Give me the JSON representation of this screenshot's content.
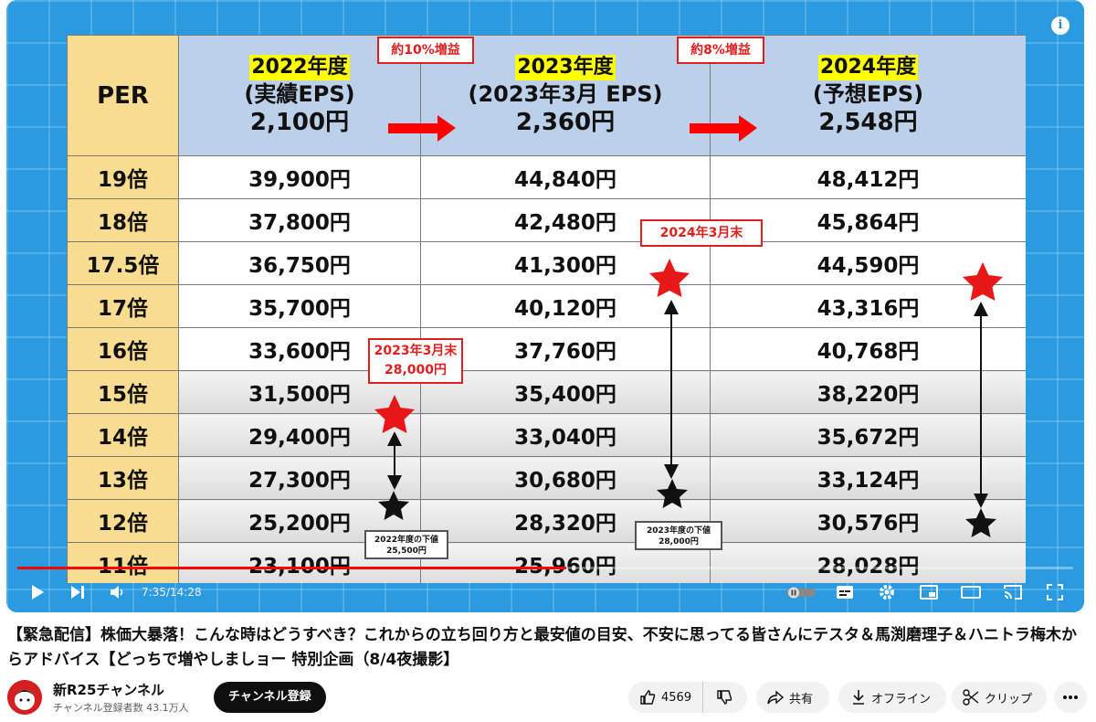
{
  "video": {
    "info_symbol": "i",
    "time_current": "7:35",
    "time_total": "14:28",
    "time_separator": " / ",
    "progress": 0.52,
    "accent": "#ff0000"
  },
  "slide": {
    "header": {
      "per": "PER",
      "col2022": {
        "year": "2022年度",
        "sub": "(実績EPS)",
        "eps": "2,100円"
      },
      "col2023": {
        "year": "2023年度",
        "sub": "(2023年3月 EPS)",
        "eps": "2,360円"
      },
      "col2024": {
        "year": "2024年度",
        "sub": "(予想EPS)",
        "eps": "2,548円"
      }
    },
    "increase_1": "約10%増益",
    "increase_2": "約8%増益",
    "rows": [
      {
        "per": "19倍",
        "v2022": "39,900円",
        "v2023": "44,840円",
        "v2024": "48,412円"
      },
      {
        "per": "18倍",
        "v2022": "37,800円",
        "v2023": "42,480円",
        "v2024": "45,864円"
      },
      {
        "per": "17.5倍",
        "v2022": "36,750円",
        "v2023": "41,300円",
        "v2024": "44,590円"
      },
      {
        "per": "17倍",
        "v2022": "35,700円",
        "v2023": "40,120円",
        "v2024": "43,316円"
      },
      {
        "per": "16倍",
        "v2022": "33,600円",
        "v2023": "37,760円",
        "v2024": "40,768円"
      },
      {
        "per": "15倍",
        "v2022": "31,500円",
        "v2023": "35,400円",
        "v2024": "38,220円"
      },
      {
        "per": "14倍",
        "v2022": "29,400円",
        "v2023": "33,040円",
        "v2024": "35,672円"
      },
      {
        "per": "13倍",
        "v2022": "27,300円",
        "v2023": "30,680円",
        "v2024": "33,124円"
      },
      {
        "per": "12倍",
        "v2022": "25,200円",
        "v2023": "28,320円",
        "v2024": "30,576円"
      },
      {
        "per": "11倍",
        "v2022": "23,100円",
        "v2023": "25,960円",
        "v2024": "28,028円"
      }
    ],
    "label_2023_end": {
      "line1": "2023年3月末",
      "line2": "28,000円"
    },
    "label_2024_end": "2024年3月末",
    "low_2022": {
      "line1": "2022年度の下値",
      "line2": "25,500円"
    },
    "low_2023": {
      "line1": "2023年度の下値",
      "line2": "28,000円"
    },
    "colors": {
      "header_bg": "#bcd0ea",
      "per_bg": "#f7dc92",
      "year_highlight": "#ffff00",
      "star_red": "#e81818",
      "arrow_red": "#ff0000"
    }
  },
  "title": "【緊急配信】株価大暴落！こんな時はどうすべき？これからの立ち回り方と最安値の目安、不安に思ってる皆さんにテスタ＆馬渕磨理子＆ハニトラ梅木からアドバイス【どっちで増やしましョー 特別企画（8/4夜撮影】",
  "channel": {
    "name": "新R25チャンネル",
    "subscribers": "チャンネル登録者数 43.1万人",
    "subscribe_label": "チャンネル登録"
  },
  "actions": {
    "likes": "4569",
    "share": "共有",
    "offline": "オフライン",
    "clip": "クリップ"
  }
}
